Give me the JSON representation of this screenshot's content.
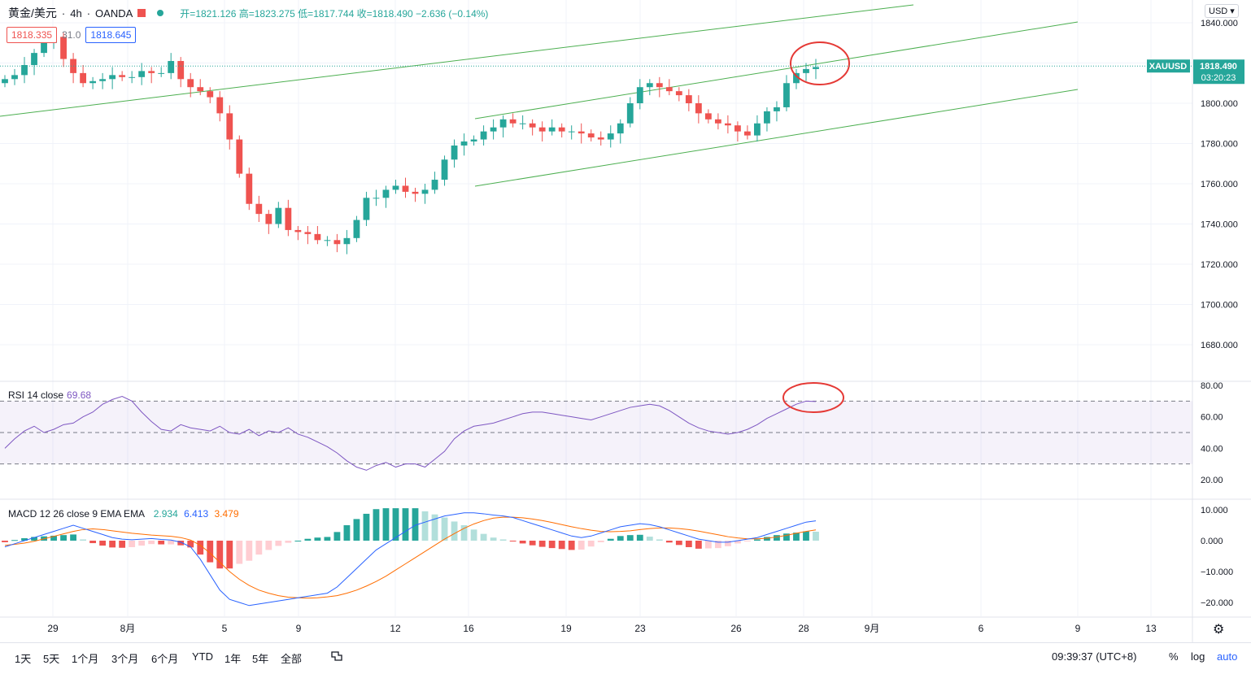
{
  "header": {
    "symbol": "黄金/美元",
    "interval": "4h",
    "source": "OANDA",
    "open_label": "开",
    "open": "1821.126",
    "high_label": "高",
    "high": "1823.275",
    "low_label": "低",
    "low": "1817.744",
    "close_label": "收",
    "close": "1818.490",
    "change": "−2.636 (−0.14%)"
  },
  "quote": {
    "sell": "1818.335",
    "spread": "31.0",
    "buy": "1818.645"
  },
  "currency": "USD",
  "price_badge": {
    "symbol": "XAUUSD",
    "price": "1818.490",
    "countdown": "03:20:23"
  },
  "price_axis": [
    "1840.000",
    "1820.000",
    "1800.000",
    "1780.000",
    "1760.000",
    "1740.000",
    "1720.000",
    "1700.000",
    "1680.000"
  ],
  "rsi": {
    "label": "RSI 14 close",
    "value": "69.68",
    "axis": [
      "80.00",
      "60.00",
      "40.00",
      "20.00"
    ]
  },
  "macd": {
    "label": "MACD 12 26 close 9 EMA EMA",
    "hist": "2.934",
    "macd": "6.413",
    "signal": "3.479",
    "axis": [
      "10.000",
      "0.000",
      "−10.000",
      "−20.000"
    ]
  },
  "time_axis": [
    "29",
    "8月",
    "5",
    "9",
    "12",
    "16",
    "19",
    "23",
    "26",
    "28",
    "9月",
    "6",
    "9",
    "13"
  ],
  "ranges": [
    "1天",
    "5天",
    "1个月",
    "3个月",
    "6个月",
    "YTD",
    "1年",
    "5年",
    "全部"
  ],
  "clock": "09:39:37 (UTC+8)",
  "options": {
    "percent": "%",
    "log": "log",
    "auto": "auto"
  },
  "colors": {
    "up": "#26a69a",
    "down": "#ef5350",
    "channel": "#4caf50",
    "rsi": "#7e57c2",
    "macd": "#2962ff",
    "signal": "#ff6d00",
    "annotation": "#e53935"
  },
  "chart_data": [
    {
      "type": "candlestick",
      "title": "黄金/美元 4h OANDA",
      "x_labels": [
        "29",
        "8月",
        "5",
        "9",
        "12",
        "16",
        "19",
        "23",
        "26",
        "28"
      ],
      "ylim": [
        1673,
        1845
      ],
      "close": [
        1812,
        1814,
        1819,
        1825,
        1830,
        1833,
        1822,
        1815,
        1810,
        1811,
        1812,
        1814,
        1813,
        1813,
        1816,
        1815,
        1815,
        1821,
        1812,
        1808,
        1806,
        1803,
        1795,
        1782,
        1765,
        1750,
        1745,
        1740,
        1748,
        1737,
        1736,
        1735,
        1732,
        1732,
        1730,
        1733,
        1742,
        1753,
        1753,
        1757,
        1759,
        1756,
        1755,
        1757,
        1762,
        1772,
        1779,
        1781,
        1782,
        1786,
        1788,
        1792,
        1790,
        1790,
        1788,
        1786,
        1788,
        1786,
        1786,
        1785,
        1783,
        1782,
        1785,
        1790,
        1800,
        1808,
        1810,
        1808,
        1806,
        1804,
        1800,
        1795,
        1792,
        1790,
        1789,
        1786,
        1784,
        1790,
        1796,
        1798,
        1810,
        1815,
        1817,
        1818
      ]
    },
    {
      "type": "line",
      "title": "RSI 14 close",
      "ylim": [
        15,
        82
      ],
      "bands": [
        30,
        50,
        70
      ],
      "values": [
        40,
        46,
        51,
        54,
        50,
        52,
        55,
        56,
        60,
        63,
        68,
        71,
        73,
        70,
        63,
        57,
        52,
        51,
        55,
        53,
        52,
        51,
        54,
        50,
        49,
        52,
        48,
        51,
        50,
        53,
        49,
        47,
        44,
        41,
        37,
        32,
        28,
        26,
        29,
        31,
        28,
        30,
        30,
        28,
        33,
        38,
        46,
        51,
        54,
        55,
        56,
        58,
        60,
        62,
        63,
        63,
        62,
        61,
        60,
        59,
        58,
        60,
        62,
        64,
        66,
        67,
        68,
        67,
        64,
        60,
        56,
        53,
        51,
        50,
        49,
        50,
        52,
        55,
        59,
        62,
        65,
        68,
        70,
        69.7
      ]
    },
    {
      "type": "line+bar",
      "title": "MACD 12 26 close 9 EMA EMA",
      "ylim": [
        -22,
        11
      ],
      "series": [
        {
          "name": "MACD",
          "values": [
            -2,
            -1,
            0,
            1,
            2,
            3,
            4,
            5,
            4,
            3,
            2,
            1,
            0.5,
            0.3,
            0.5,
            0.7,
            0.4,
            0.2,
            -0.5,
            -2,
            -6,
            -11,
            -16,
            -19,
            -20,
            -21,
            -20.5,
            -20,
            -19.5,
            -19,
            -18.5,
            -18,
            -17.5,
            -17,
            -15,
            -12,
            -9,
            -6,
            -3,
            -1,
            1,
            3,
            5,
            6,
            7,
            8,
            8.5,
            9,
            9,
            8.7,
            8.3,
            8,
            7.5,
            6.5,
            5.5,
            4.5,
            3.5,
            2.5,
            1.5,
            1,
            1.5,
            2.5,
            3.5,
            4.5,
            5,
            5.5,
            5.2,
            4.5,
            3.5,
            2.5,
            1.5,
            0.5,
            0,
            -0.5,
            -0.5,
            0,
            0.5,
            1,
            2,
            3,
            4,
            5,
            6,
            6.4
          ]
        },
        {
          "name": "Signal",
          "values": [
            -1.5,
            -1.2,
            -0.8,
            -0.2,
            0.6,
            1.4,
            2.2,
            3,
            3.6,
            3.8,
            3.6,
            3.2,
            2.8,
            2.4,
            2.1,
            1.8,
            1.6,
            1.4,
            1,
            0.2,
            -1.5,
            -4,
            -7,
            -10,
            -12.5,
            -14.5,
            -16,
            -17,
            -17.8,
            -18.3,
            -18.5,
            -18.6,
            -18.5,
            -18.2,
            -17.8,
            -17,
            -16,
            -14.7,
            -13.2,
            -11.5,
            -9.5,
            -7.5,
            -5.5,
            -3.5,
            -1.5,
            0.5,
            2.3,
            4,
            5.4,
            6.5,
            7.3,
            7.6,
            7.6,
            7.4,
            7,
            6.5,
            5.9,
            5.2,
            4.5,
            3.9,
            3.4,
            3,
            2.9,
            3,
            3.2,
            3.6,
            3.9,
            4.1,
            4.1,
            3.9,
            3.6,
            3.1,
            2.5,
            1.9,
            1.3,
            0.9,
            0.6,
            0.6,
            0.8,
            1.2,
            1.7,
            2.4,
            3,
            3.5
          ]
        }
      ]
    }
  ]
}
